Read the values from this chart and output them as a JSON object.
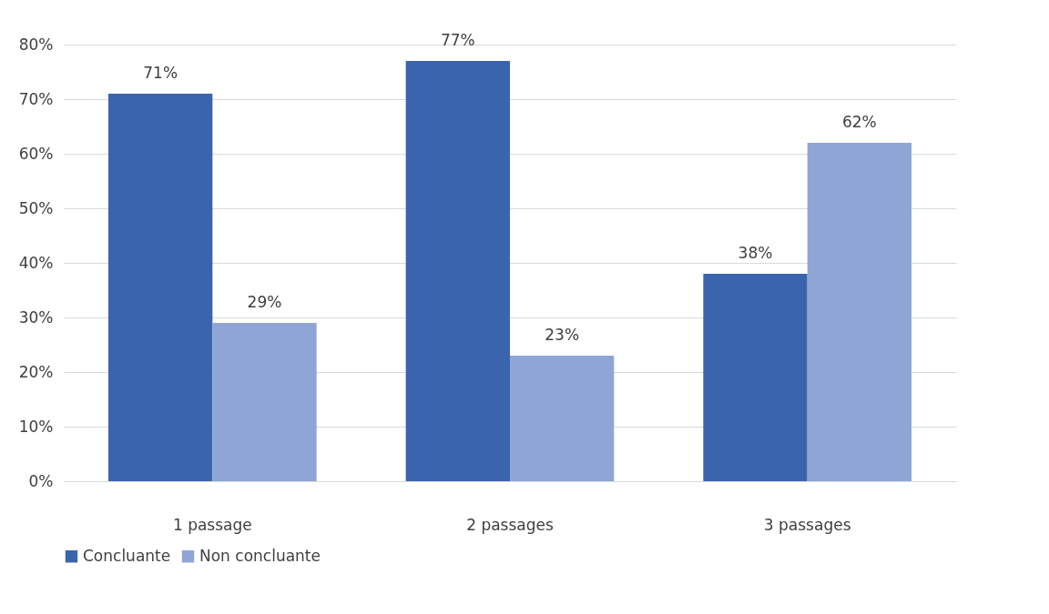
{
  "chart_data": {
    "type": "bar",
    "categories": [
      "1 passage",
      "2 passages",
      "3 passages"
    ],
    "series": [
      {
        "name": "Concluante",
        "color": "#3a64ad",
        "values": [
          71,
          77,
          38
        ],
        "value_labels": [
          "71%",
          "77%",
          "38%"
        ]
      },
      {
        "name": "Non concluante",
        "color": "#8fa5d6",
        "values": [
          29,
          23,
          62
        ],
        "value_labels": [
          "29%",
          "23%",
          "62%"
        ]
      }
    ],
    "ylim": [
      0,
      80
    ],
    "yticks": [
      {
        "value": 0,
        "label": "0%"
      },
      {
        "value": 10,
        "label": "10%"
      },
      {
        "value": 20,
        "label": "20%"
      },
      {
        "value": 30,
        "label": "30%"
      },
      {
        "value": 40,
        "label": "40%"
      },
      {
        "value": 50,
        "label": "50%"
      },
      {
        "value": 60,
        "label": "60%"
      },
      {
        "value": 70,
        "label": "70%"
      },
      {
        "value": 80,
        "label": "80%"
      }
    ],
    "grid": "y",
    "legend": "bottom"
  }
}
